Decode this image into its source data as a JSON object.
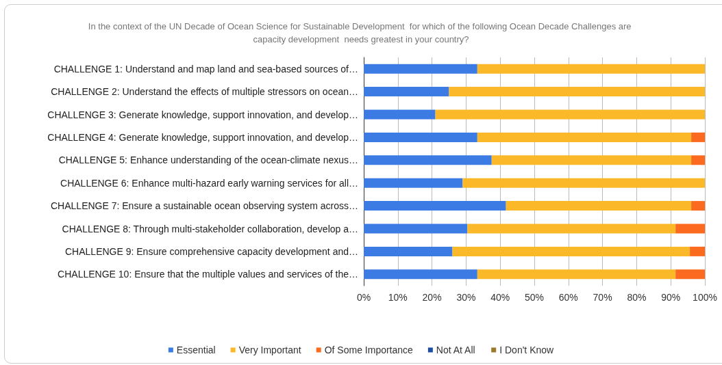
{
  "chart_data": {
    "type": "bar",
    "orientation": "horizontal",
    "stacked": true,
    "title": "In the context of the UN Decade of Ocean Science for Sustainable Development  for which of the following Ocean Decade Challenges are capacity development  needs greatest in your country?",
    "categories": [
      "CHALLENGE 1: Understand and map land and sea-based sources of…",
      "CHALLENGE 2: Understand the effects of multiple stressors on ocean…",
      "CHALLENGE 3: Generate knowledge, support innovation, and develop…",
      "CHALLENGE 4: Generate knowledge, support innovation, and develop…",
      "CHALLENGE 5: Enhance understanding of the ocean-climate nexus…",
      "CHALLENGE 6: Enhance multi-hazard early warning services for all…",
      "CHALLENGE 7: Ensure a sustainable ocean observing system across…",
      "CHALLENGE 8: Through multi-stakeholder collaboration, develop a…",
      "CHALLENGE 9: Ensure comprehensive capacity development and…",
      "CHALLENGE 10: Ensure that the multiple values and services of the…"
    ],
    "series": [
      {
        "name": "Essential",
        "color": "#3c7be4",
        "values": [
          33.3,
          25,
          21,
          33.3,
          37.5,
          29,
          41.7,
          30.4,
          26,
          33.3
        ]
      },
      {
        "name": "Very Important",
        "color": "#fbb829",
        "values": [
          66.7,
          75,
          79,
          62.7,
          58.5,
          71,
          54.3,
          61,
          69.6,
          58.1
        ]
      },
      {
        "name": "Of Some Importance",
        "color": "#fb6a1e",
        "values": [
          0,
          0,
          0,
          4,
          4,
          0,
          4,
          8.6,
          4.4,
          8.6
        ]
      },
      {
        "name": "Not At All",
        "color": "#1c4fa3",
        "values": [
          0,
          0,
          0,
          0,
          0,
          0,
          0,
          0,
          0,
          0
        ]
      },
      {
        "name": "I Don't Know",
        "color": "#9b7a2c",
        "values": [
          0,
          0,
          0,
          0,
          0,
          0,
          0,
          0,
          0,
          0
        ]
      }
    ],
    "xlim": [
      0,
      100
    ],
    "xticks": [
      {
        "value": 0,
        "label": "0%"
      },
      {
        "value": 10,
        "label": "10%"
      },
      {
        "value": 20,
        "label": "20%"
      },
      {
        "value": 30,
        "label": "30%"
      },
      {
        "value": 40,
        "label": "40%"
      },
      {
        "value": 50,
        "label": "50%"
      },
      {
        "value": 60,
        "label": "60%"
      },
      {
        "value": 70,
        "label": "70%"
      },
      {
        "value": 80,
        "label": "80%"
      },
      {
        "value": 90,
        "label": "90%"
      },
      {
        "value": 100,
        "label": "100%"
      }
    ],
    "grid": "x",
    "legend": "bottom"
  }
}
